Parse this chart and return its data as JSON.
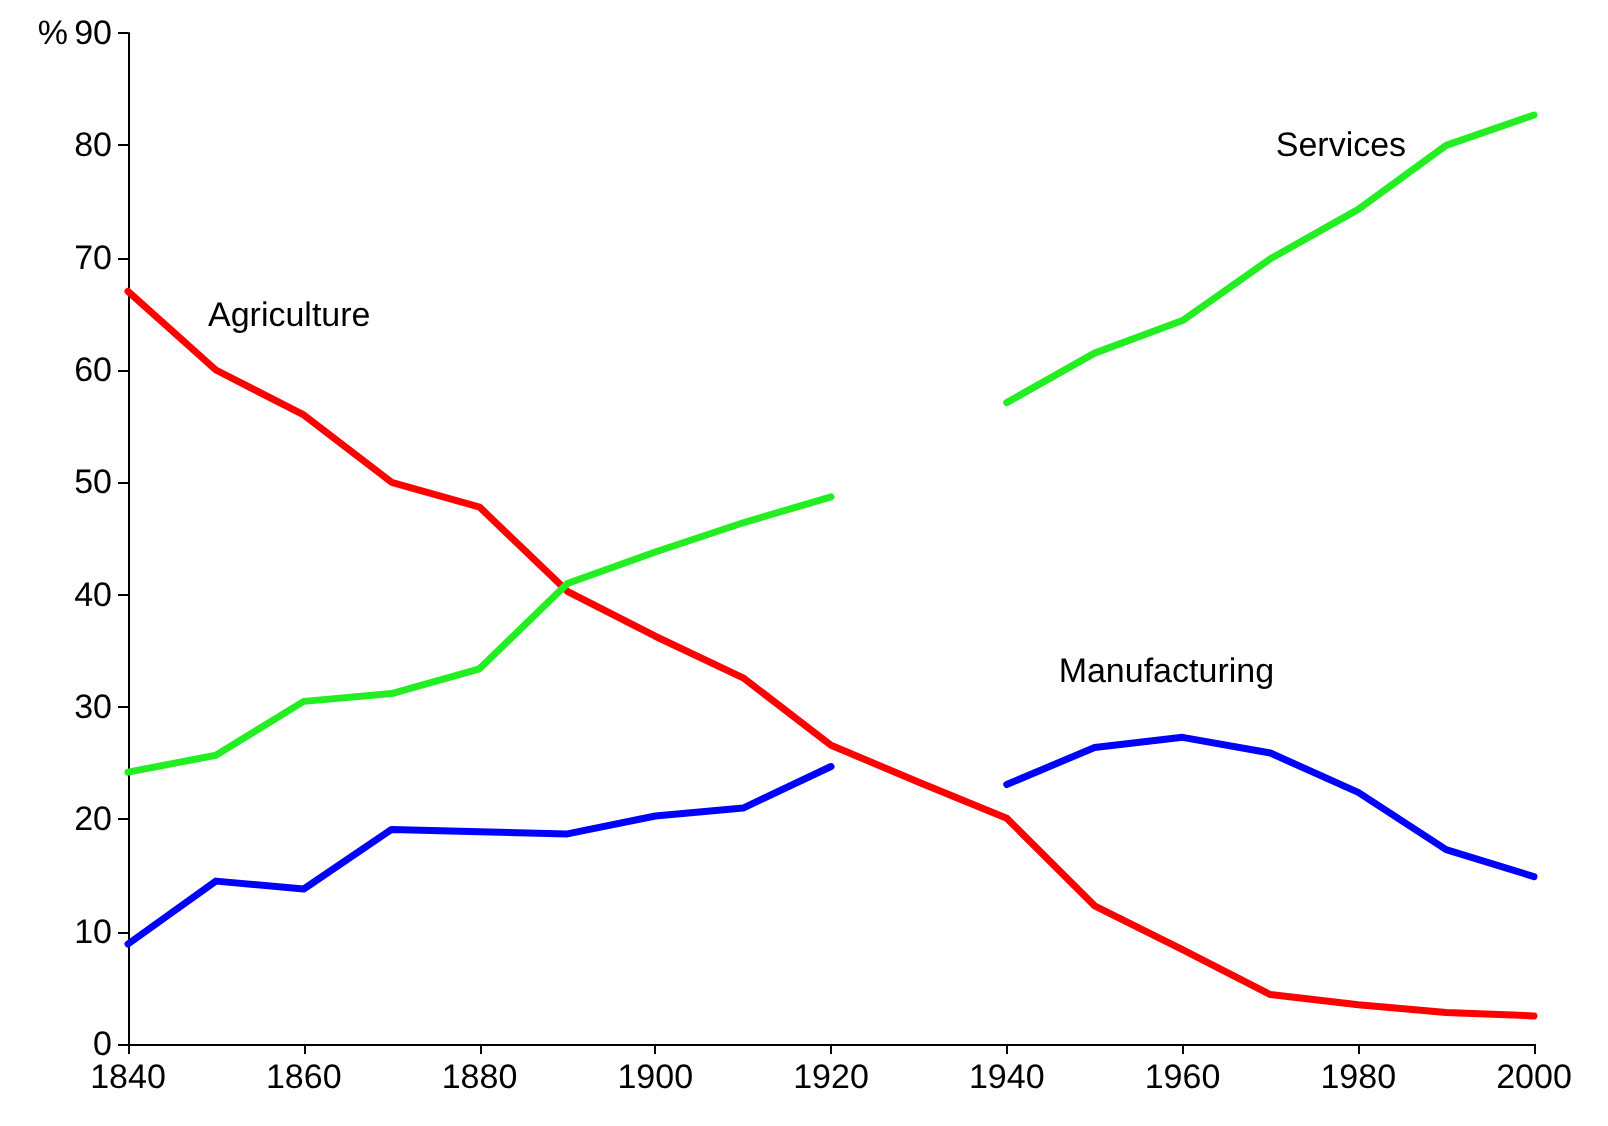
{
  "chart_data": {
    "type": "line",
    "ylabel": "%",
    "x": [
      1840,
      1850,
      1860,
      1870,
      1880,
      1890,
      1900,
      1910,
      1920,
      1930,
      1940,
      1950,
      1960,
      1970,
      1980,
      1990,
      2000
    ],
    "series": [
      {
        "name": "Agriculture",
        "color": "#ff0000",
        "values": [
          67,
          60,
          56,
          50,
          47.8,
          40.3,
          36.3,
          32.6,
          26.6,
          23.3,
          20.1,
          12.3,
          8.4,
          4.4,
          3.5,
          2.8,
          2.5
        ]
      },
      {
        "name": "Services",
        "color": "#22ee22",
        "values": [
          24.2,
          25.7,
          30.5,
          31.2,
          33.4,
          41,
          43.8,
          46.4,
          48.7,
          null,
          57.1,
          61.5,
          64.4,
          69.9,
          74.3,
          80,
          82.7
        ]
      },
      {
        "name": "Manufacturing",
        "color": "#0000ff",
        "values": [
          8.9,
          14.5,
          13.8,
          19.1,
          18.9,
          18.7,
          20.3,
          21,
          24.7,
          null,
          23.1,
          26.4,
          27.3,
          25.9,
          22.4,
          17.3,
          14.9
        ]
      }
    ],
    "xlim": [
      1840,
      2000
    ],
    "xticks": [
      1840,
      1860,
      1880,
      1900,
      1920,
      1940,
      1960,
      1980,
      2000
    ],
    "ylim": [
      0,
      90
    ],
    "yticks": [
      0,
      10,
      20,
      30,
      40,
      50,
      60,
      70,
      80,
      90
    ],
    "grid": false,
    "marker": "none",
    "line_style": "solid"
  }
}
